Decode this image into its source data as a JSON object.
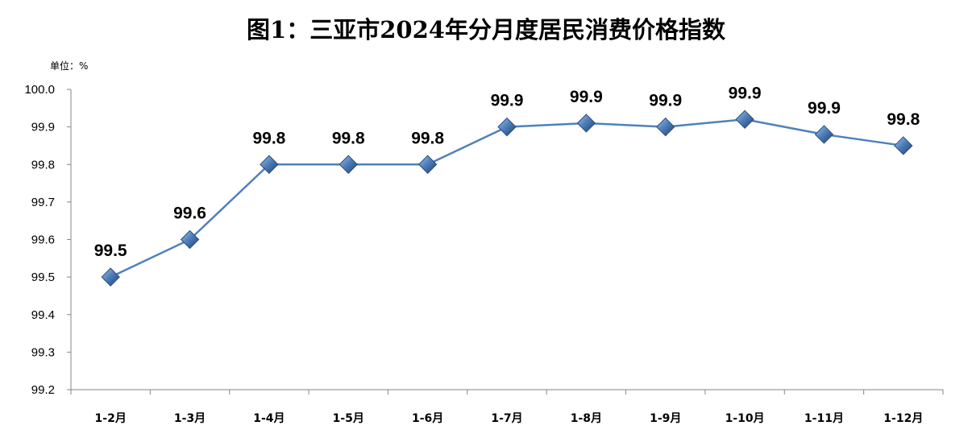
{
  "chart_data": {
    "type": "line",
    "title": "图1：三亚市2024年分月度居民消费价格指数",
    "unit_label": "单位：%",
    "categories": [
      "1-2月",
      "1-3月",
      "1-4月",
      "1-5月",
      "1-6月",
      "1-7月",
      "1-8月",
      "1-9月",
      "1-10月",
      "1-11月",
      "1-12月"
    ],
    "values": [
      99.5,
      99.6,
      99.8,
      99.8,
      99.8,
      99.9,
      99.91,
      99.9,
      99.92,
      99.88,
      99.85
    ],
    "data_labels": [
      "99.5",
      "99.6",
      "99.8",
      "99.8",
      "99.8",
      "99.9",
      "99.9",
      "99.9",
      "99.9",
      "99.9",
      "99.8"
    ],
    "ylim": [
      99.2,
      100.0
    ],
    "yticks": [
      "100.0",
      "99.9",
      "99.8",
      "99.7",
      "99.6",
      "99.5",
      "99.4",
      "99.3",
      "99.2"
    ],
    "grid": false,
    "legend": false,
    "line_color": "#4f81bd",
    "marker": "diamond",
    "marker_color": "#4f81bd"
  }
}
